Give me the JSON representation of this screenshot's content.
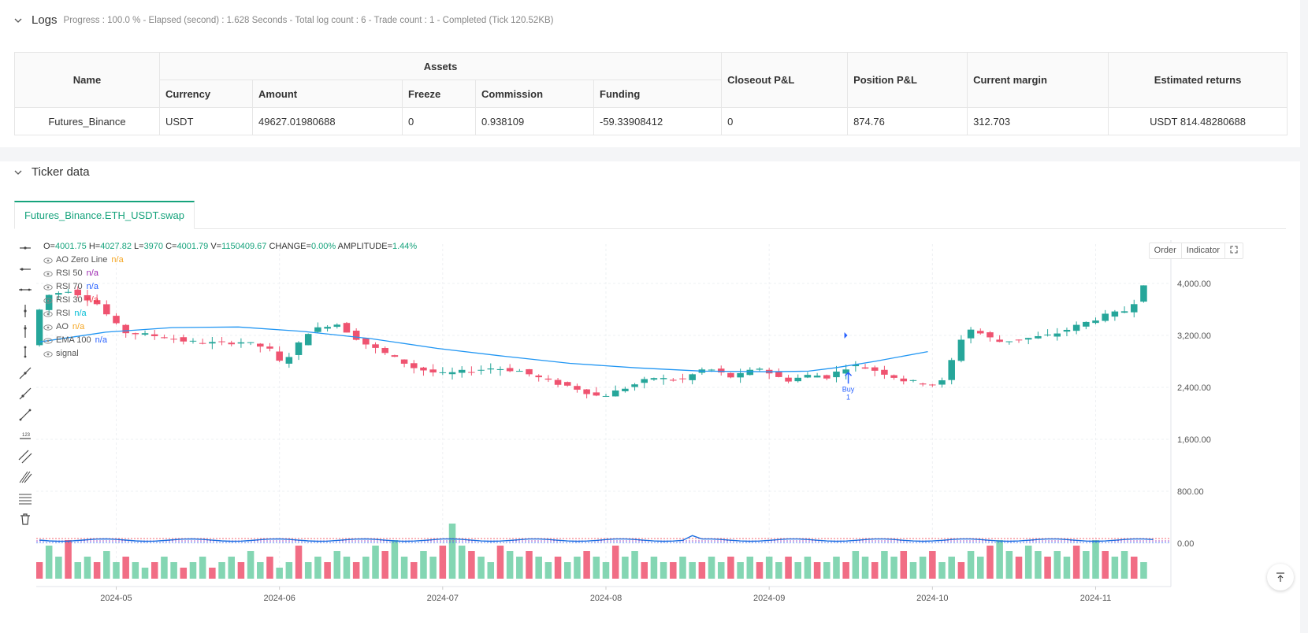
{
  "logs": {
    "title": "Logs",
    "meta": "Progress : 100.0 % - Elapsed (second) : 1.628  Seconds - Total log count : 6 - Trade count : 1 - Completed (Tick 120.52KB)",
    "table": {
      "name_header": "Name",
      "assets_header": "Assets",
      "sub_headers": [
        "Currency",
        "Amount",
        "Freeze",
        "Commission",
        "Funding"
      ],
      "closeout_header": "Closeout P&L",
      "position_header": "Position P&L",
      "margin_header": "Current margin",
      "returns_header": "Estimated returns",
      "row": {
        "name": "Futures_Binance",
        "currency": "USDT",
        "amount": "49627.01980688",
        "freeze": "0",
        "commission": "0.938109",
        "funding": "-59.33908412",
        "closeout": "0",
        "position": "874.76",
        "margin": "312.703",
        "returns": "USDT 814.48280688"
      }
    }
  },
  "ticker": {
    "title": "Ticker data",
    "tab": "Futures_Binance.ETH_USDT.swap",
    "buttons": {
      "order": "Order",
      "indicator": "Indicator"
    },
    "ohlc": {
      "o_label": "O=",
      "o": "4001.75",
      "h_label": "H=",
      "h": "4027.82",
      "l_label": "L=",
      "l": "3970",
      "c_label": "C=",
      "c": "4001.79",
      "v_label": "V=",
      "v": "1150409.67",
      "chg_label": "CHANGE=",
      "chg": "0.00%",
      "amp_label": "AMPLITUDE=",
      "amp": "1.44%"
    },
    "legend": [
      {
        "name": "AO Zero Line",
        "value": "n/a",
        "color": "#f5a623"
      },
      {
        "name": "RSI 50",
        "value": "n/a",
        "color": "#9c27b0"
      },
      {
        "name": "RSI 70",
        "value": "n/a",
        "color": "#2962ff"
      },
      {
        "name": "RSI 30",
        "value": "n/a",
        "color": "#f23645"
      },
      {
        "name": "RSI",
        "value": "n/a",
        "color": "#00bcd4"
      },
      {
        "name": "AO",
        "value": "n/a",
        "color": "#f5a623"
      },
      {
        "name": "EMA 100",
        "value": "n/a",
        "color": "#2962ff"
      },
      {
        "name": "signal",
        "value": "",
        "color": "#555555"
      }
    ],
    "buy_label": "Buy",
    "buy_qty": "1"
  },
  "chart_data": {
    "type": "candlestick",
    "y_ticks": [
      "4,000.00",
      "3,200.00",
      "2,400.00",
      "1,600.00",
      "800.00",
      "0.00"
    ],
    "y_tick_values": [
      4000,
      3200,
      2400,
      1600,
      800,
      0
    ],
    "x_ticks": [
      "2024-05",
      "2024-06",
      "2024-07",
      "2024-08",
      "2024-09",
      "2024-10",
      "2024-11"
    ],
    "x_tick_index": [
      8,
      25,
      42,
      59,
      76,
      93,
      110
    ],
    "candle_count": 116,
    "price_path": [
      [
        0,
        3050
      ],
      [
        2,
        3800
      ],
      [
        6,
        3900
      ],
      [
        10,
        3700
      ],
      [
        14,
        3250
      ],
      [
        20,
        3180
      ],
      [
        24,
        3100
      ],
      [
        28,
        3080
      ],
      [
        32,
        3100
      ],
      [
        36,
        3000
      ],
      [
        38,
        2750
      ],
      [
        42,
        3250
      ],
      [
        46,
        3400
      ],
      [
        50,
        3100
      ],
      [
        54,
        2900
      ],
      [
        58,
        2700
      ],
      [
        62,
        2600
      ],
      [
        66,
        2650
      ],
      [
        70,
        2700
      ],
      [
        74,
        2650
      ],
      [
        78,
        2500
      ],
      [
        82,
        2400
      ],
      [
        86,
        2250
      ],
      [
        90,
        2400
      ],
      [
        94,
        2550
      ],
      [
        98,
        2500
      ],
      [
        102,
        2700
      ],
      [
        106,
        2550
      ],
      [
        110,
        2700
      ],
      [
        114,
        2500
      ],
      [
        118,
        2600
      ],
      [
        120,
        2550
      ],
      [
        124,
        2750
      ],
      [
        128,
        2650
      ],
      [
        132,
        2500
      ],
      [
        136,
        2450
      ],
      [
        138,
        2500
      ],
      [
        140,
        3100
      ],
      [
        142,
        3300
      ],
      [
        146,
        3100
      ],
      [
        150,
        3150
      ],
      [
        154,
        3200
      ],
      [
        158,
        3350
      ],
      [
        162,
        3500
      ],
      [
        166,
        3600
      ],
      [
        168,
        4000
      ]
    ],
    "ema_path": [
      [
        0,
        3100
      ],
      [
        10,
        3250
      ],
      [
        20,
        3320
      ],
      [
        30,
        3330
      ],
      [
        40,
        3260
      ],
      [
        50,
        3150
      ],
      [
        60,
        3000
      ],
      [
        70,
        2880
      ],
      [
        80,
        2770
      ],
      [
        90,
        2700
      ],
      [
        100,
        2650
      ],
      [
        110,
        2640
      ],
      [
        116,
        2650
      ],
      [
        120,
        2700
      ],
      [
        126,
        2800
      ],
      [
        134,
        2950
      ]
    ],
    "buy_index": 122,
    "volume_levels": [
      0.3,
      0.6,
      0.4,
      0.7,
      0.3,
      0.4,
      0.3,
      0.5,
      0.3,
      0.4,
      0.3,
      0.2,
      0.3,
      0.4,
      0.3,
      0.2,
      0.3,
      0.4,
      0.2,
      0.3,
      0.4,
      0.3,
      0.5,
      0.3,
      0.4,
      0.2,
      0.3,
      0.6,
      0.3,
      0.4,
      0.3,
      0.5,
      0.4,
      0.3,
      0.4,
      0.6,
      0.5,
      0.7,
      0.4,
      0.3,
      0.5,
      0.4,
      0.6,
      1.0,
      0.6,
      0.5,
      0.4,
      0.3,
      0.6,
      0.5,
      0.4,
      0.5,
      0.4,
      0.3,
      0.4,
      0.3,
      0.4,
      0.5,
      0.4,
      0.3,
      0.6,
      0.4,
      0.5,
      0.3,
      0.4,
      0.3,
      0.3,
      0.4,
      0.3,
      0.3,
      0.4,
      0.3,
      0.4,
      0.3,
      0.4,
      0.3,
      0.4,
      0.3,
      0.4,
      0.3,
      0.4,
      0.3,
      0.3,
      0.4,
      0.3,
      0.5,
      0.4,
      0.3,
      0.5,
      0.4,
      0.5,
      0.3,
      0.4,
      0.5,
      0.3,
      0.4,
      0.3,
      0.5,
      0.4,
      0.6,
      0.7,
      0.5,
      0.4,
      0.6,
      0.5,
      0.4,
      0.5,
      0.4,
      0.6,
      0.5,
      0.7,
      0.5,
      0.4,
      0.5,
      0.4,
      0.3
    ]
  }
}
